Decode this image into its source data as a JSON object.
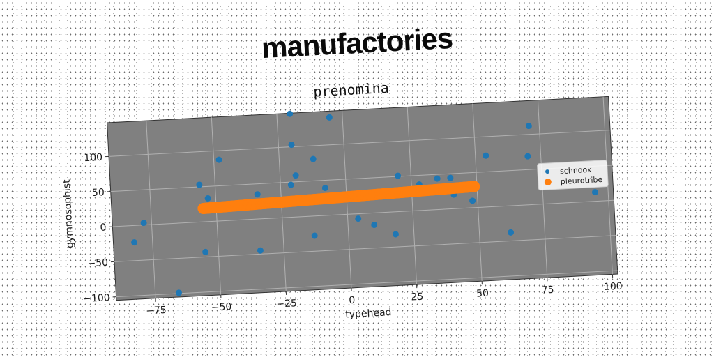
{
  "suptitle": "manufactories",
  "chart_data": {
    "type": "scatter",
    "title": "prenomina",
    "xlabel": "typehead",
    "ylabel": "gymnosophist",
    "xlim": [
      -90,
      102
    ],
    "ylim": [
      -105,
      148
    ],
    "xticks": [
      -75,
      -50,
      -25,
      0,
      25,
      50,
      75,
      100
    ],
    "yticks": [
      -100,
      -50,
      0,
      50,
      100
    ],
    "xtick_labels": [
      "−75",
      "−50",
      "−25",
      "0",
      "25",
      "50",
      "75",
      "100"
    ],
    "ytick_labels": [
      "−100",
      "−50",
      "0",
      "50",
      "100"
    ],
    "grid": true,
    "background": "#808080",
    "legend_position": "right",
    "series": [
      {
        "name": "schnook",
        "color": "#1f77b4",
        "marker": "circle",
        "points": [
          [
            -20,
            147
          ],
          [
            -5,
            139
          ],
          [
            -20,
            103
          ],
          [
            -48,
            87
          ],
          [
            -12,
            81
          ],
          [
            71,
            112
          ],
          [
            54,
            73
          ],
          [
            70,
            69
          ],
          [
            -19,
            59
          ],
          [
            -56,
            53
          ],
          [
            -21,
            46
          ],
          [
            -8,
            39
          ],
          [
            -34,
            35
          ],
          [
            -53,
            33
          ],
          [
            20,
            51
          ],
          [
            28,
            37
          ],
          [
            35,
            44
          ],
          [
            40,
            44
          ],
          [
            43,
            30
          ],
          [
            41,
            20
          ],
          [
            48,
            10
          ],
          [
            95,
            13
          ],
          [
            -78,
            3
          ],
          [
            4,
            -7
          ],
          [
            10,
            -17
          ],
          [
            -82,
            -24
          ],
          [
            -13,
            -28
          ],
          [
            18,
            -32
          ],
          [
            -55,
            -43
          ],
          [
            -34,
            -45
          ],
          [
            62,
            -38
          ],
          [
            -66,
            -99
          ]
        ]
      },
      {
        "name": "pleurotribe",
        "color": "#ff7f0e",
        "marker": "circle",
        "line": {
          "x0": -55,
          "x1": 49,
          "y0": 19,
          "y1": 30
        }
      }
    ]
  }
}
